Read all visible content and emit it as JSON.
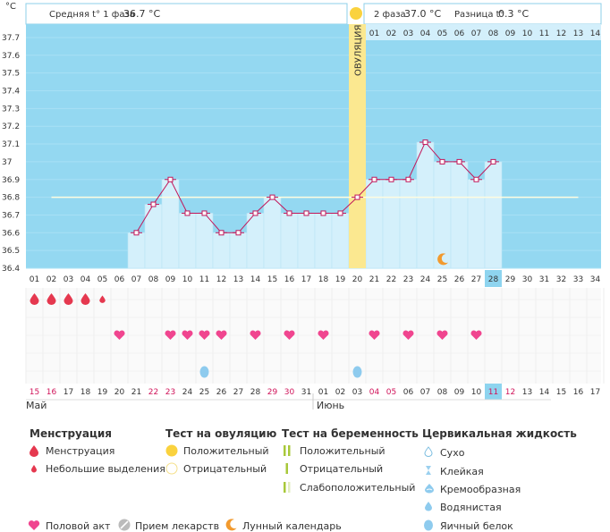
{
  "header": {
    "unit_label": "°C",
    "phase1_label": "Средняя t° 1 фаза",
    "phase1_value": "36.7 °C",
    "phase2_label": "2 фаза",
    "phase2_value": "37.0 °C",
    "diff_label": "Разница t°",
    "diff_value": "0.3 °C"
  },
  "ovulation_label": "ОВУЛЯЦИЯ",
  "phase2_day_labels": [
    "01",
    "02",
    "03",
    "04",
    "05",
    "06",
    "07",
    "08",
    "09",
    "10",
    "11",
    "12",
    "13",
    "14"
  ],
  "y_ticks": [
    "37.7",
    "37.6",
    "37.5",
    "37.4",
    "37.3",
    "37.2",
    "37.1",
    "37",
    "36.9",
    "36.8",
    "36.7",
    "36.6",
    "36.5",
    "36.4"
  ],
  "cycle_days": [
    "01",
    "02",
    "03",
    "04",
    "05",
    "06",
    "07",
    "08",
    "09",
    "10",
    "11",
    "12",
    "13",
    "14",
    "15",
    "16",
    "17",
    "18",
    "19",
    "20",
    "21",
    "22",
    "23",
    "24",
    "25",
    "26",
    "27",
    "28",
    "29",
    "30",
    "31",
    "32",
    "33",
    "34"
  ],
  "current_cycle_day": "28",
  "chart_data": {
    "type": "line",
    "x": [
      7,
      8,
      9,
      10,
      11,
      12,
      13,
      14,
      15,
      16,
      17,
      18,
      19,
      20,
      21,
      22,
      23,
      24,
      25,
      26,
      27,
      28
    ],
    "values": [
      36.6,
      36.76,
      36.9,
      36.71,
      36.71,
      36.6,
      36.6,
      36.71,
      36.8,
      36.71,
      36.71,
      36.71,
      36.71,
      36.8,
      36.9,
      36.9,
      36.9,
      37.11,
      37.0,
      37.0,
      36.9,
      37.0
    ],
    "coverline": 36.8,
    "ovulation_day": 20,
    "ylim": [
      36.4,
      37.7
    ],
    "xlim": [
      1,
      34
    ]
  },
  "events": {
    "menstruation_heavy_days": [
      1,
      2,
      3,
      4
    ],
    "menstruation_light_days": [
      5
    ],
    "intercourse_days": [
      6,
      9,
      10,
      11,
      12,
      14,
      16,
      18,
      21,
      23,
      25,
      27
    ],
    "egg_white_days": [
      11,
      20
    ],
    "moon_day": 25
  },
  "calendar": {
    "dates": [
      "15",
      "16",
      "17",
      "18",
      "19",
      "20",
      "21",
      "22",
      "23",
      "24",
      "25",
      "26",
      "27",
      "28",
      "29",
      "30",
      "31",
      "01",
      "02",
      "03",
      "04",
      "05",
      "06",
      "07",
      "08",
      "09",
      "10",
      "11",
      "12",
      "13",
      "14",
      "15",
      "16",
      "17"
    ],
    "red_indexes": [
      0,
      1,
      7,
      8,
      14,
      15,
      20,
      21,
      27,
      28
    ],
    "today_index": 27,
    "month_may": "Май",
    "month_june": "Июнь"
  },
  "legend": {
    "menstruation": {
      "title": "Менструация",
      "items": [
        "Менструация",
        "Небольшие выделения"
      ]
    },
    "ovulation_test": {
      "title": "Тест на овуляцию",
      "items": [
        "Положительный",
        "Отрицательный"
      ]
    },
    "pregnancy_test": {
      "title": "Тест на беременность",
      "items": [
        "Положительный",
        "Отрицательный",
        "Слабоположительный"
      ]
    },
    "cervical": {
      "title": "Цервикальная жидкость",
      "items": [
        "Сухо",
        "Клейкая",
        "Кремообразная",
        "Водянистая",
        "Яичный белок"
      ]
    },
    "bottom": [
      "Половой акт",
      "Прием лекарств",
      "Лунный календарь"
    ]
  },
  "colors": {
    "sky": "#94d8f1",
    "bar": "#d4f0fb",
    "ovulation": "#fbe890",
    "line": "#c2185b",
    "heart": "#f0458f",
    "drop": "#e5384f",
    "today": "#8ed4ef",
    "moon": "#f29a2e",
    "cyan_drop": "#8ecbee"
  }
}
